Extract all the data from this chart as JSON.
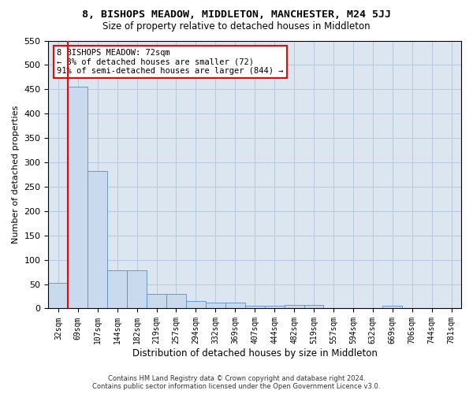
{
  "title": "8, BISHOPS MEADOW, MIDDLETON, MANCHESTER, M24 5JJ",
  "subtitle": "Size of property relative to detached houses in Middleton",
  "xlabel": "Distribution of detached houses by size in Middleton",
  "ylabel": "Number of detached properties",
  "bar_color": "#c9d9ee",
  "bar_edge_color": "#5b8ec4",
  "grid_color": "#b8c8dc",
  "background_color": "#dce6f1",
  "categories": [
    "32sqm",
    "69sqm",
    "107sqm",
    "144sqm",
    "182sqm",
    "219sqm",
    "257sqm",
    "294sqm",
    "332sqm",
    "369sqm",
    "407sqm",
    "444sqm",
    "482sqm",
    "519sqm",
    "557sqm",
    "594sqm",
    "632sqm",
    "669sqm",
    "706sqm",
    "744sqm",
    "781sqm"
  ],
  "values": [
    53,
    456,
    283,
    78,
    78,
    30,
    30,
    15,
    12,
    12,
    5,
    5,
    7,
    7,
    0,
    0,
    0,
    6,
    0,
    0,
    0
  ],
  "red_line_x": 0.5,
  "annotation_line1": "8 BISHOPS MEADOW: 72sqm",
  "annotation_line2": "← 8% of detached houses are smaller (72)",
  "annotation_line3": "91% of semi-detached houses are larger (844) →",
  "annotation_box_color": "white",
  "annotation_box_edge_color": "red",
  "ylim": [
    0,
    550
  ],
  "yticks": [
    0,
    50,
    100,
    150,
    200,
    250,
    300,
    350,
    400,
    450,
    500,
    550
  ],
  "footer_line1": "Contains HM Land Registry data © Crown copyright and database right 2024.",
  "footer_line2": "Contains public sector information licensed under the Open Government Licence v3.0."
}
